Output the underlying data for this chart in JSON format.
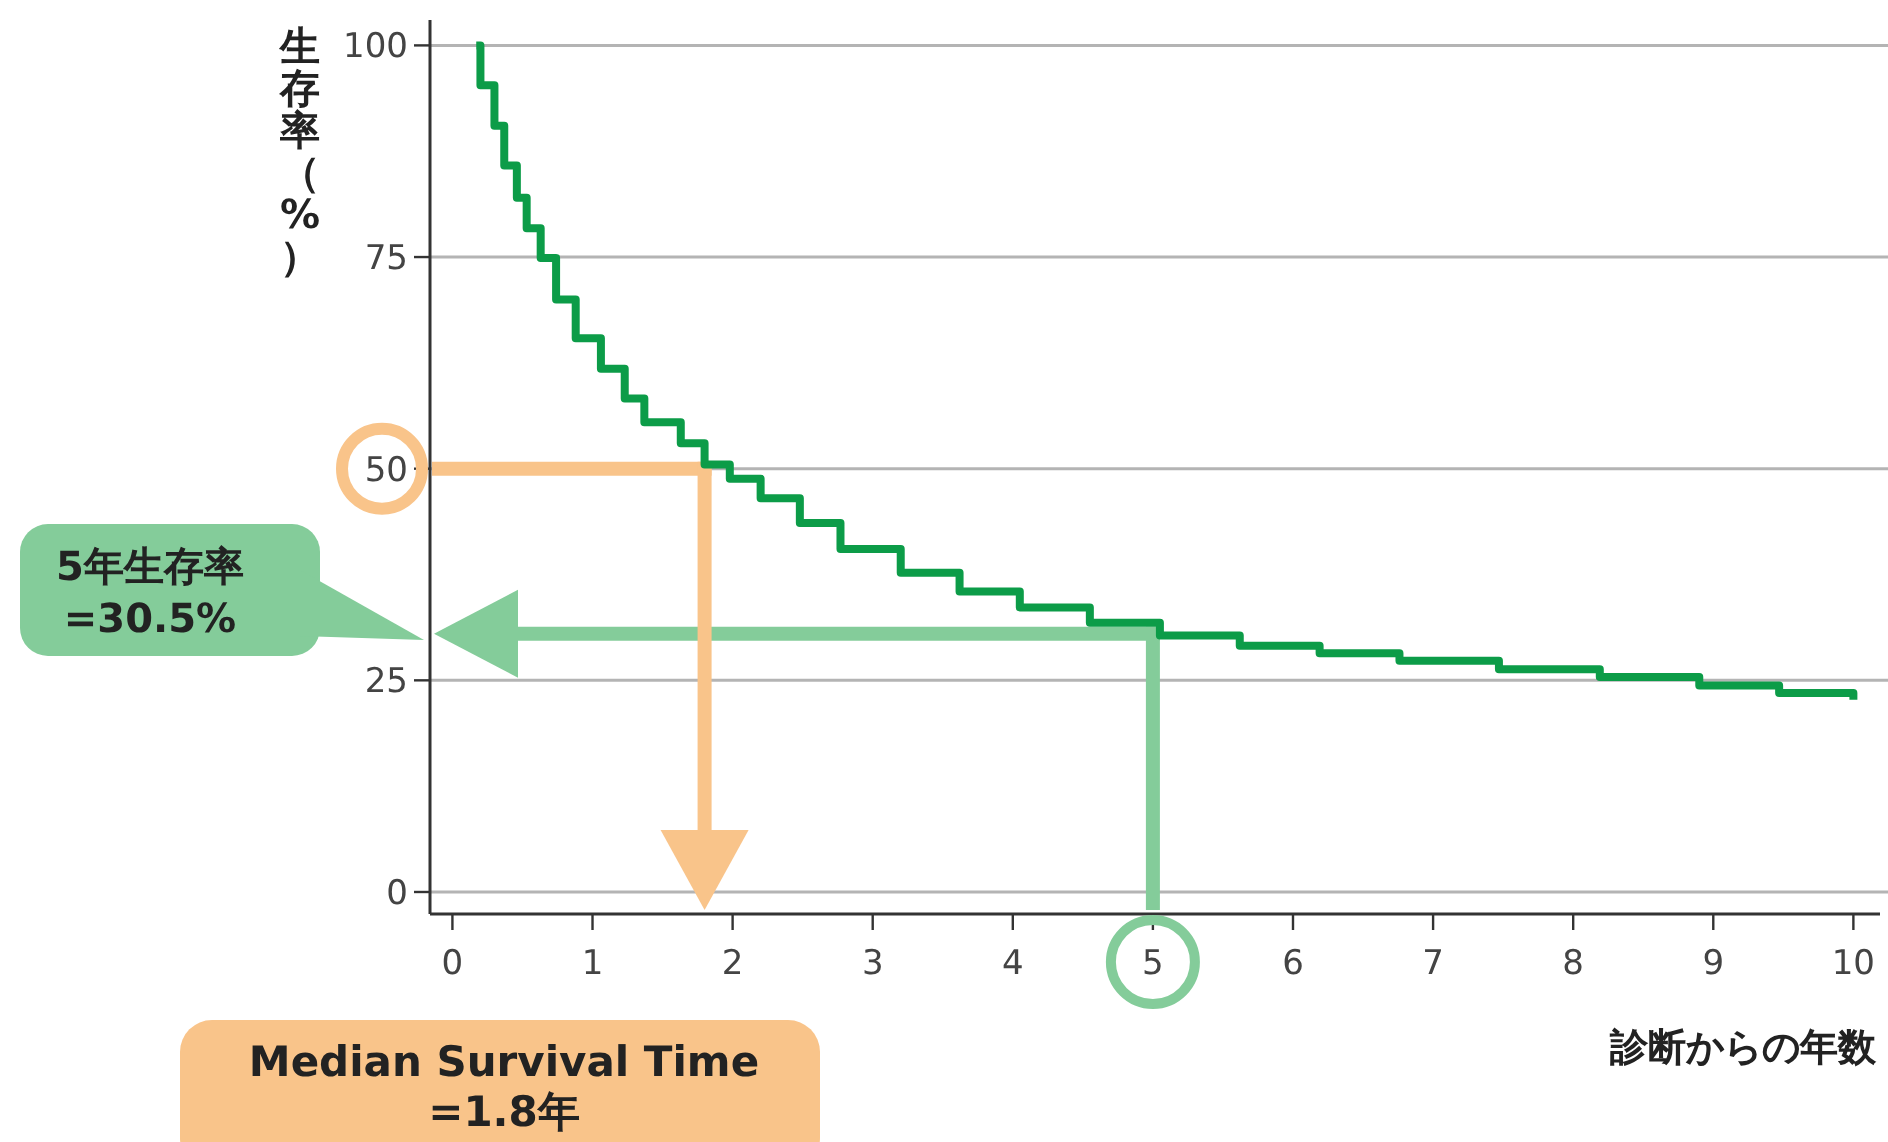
{
  "chart_data": {
    "type": "step",
    "xlabel": "診断からの年数",
    "ylabel": "生存率（%）",
    "x": [
      0.17,
      0.2,
      0.3,
      0.37,
      0.46,
      0.53,
      0.63,
      0.74,
      0.88,
      1.06,
      1.23,
      1.37,
      1.63,
      1.8,
      1.98,
      2.2,
      2.48,
      2.77,
      3.2,
      3.62,
      4.05,
      4.55,
      5.05,
      5.62,
      6.19,
      6.76,
      7.47,
      8.19,
      8.9,
      9.47,
      10
    ],
    "series": [
      {
        "color": "#0c9c48",
        "values": [
          100,
          95.3,
          90.5,
          85.8,
          82,
          78.4,
          74.9,
          70,
          65.4,
          61.8,
          58.3,
          55.5,
          53,
          50.5,
          48.8,
          46.5,
          43.6,
          40.5,
          37.7,
          35.5,
          33.6,
          31.8,
          30.3,
          29.1,
          28.2,
          27.3,
          26.3,
          25.4,
          24.4,
          23.5,
          22.7
        ]
      }
    ],
    "xlim": [
      -0.16,
      10.19
    ],
    "ylim": [
      -2.6,
      103
    ],
    "xticks": [
      0,
      1,
      2,
      3,
      4,
      5,
      6,
      7,
      8,
      9,
      10
    ],
    "yticks": [
      0,
      25,
      50,
      75,
      100
    ],
    "grid": "y",
    "ref_lines": [
      {
        "axis": "y",
        "value": 30.5,
        "color": "#84cc9a"
      },
      {
        "axis": "x",
        "value": 5,
        "color": "#84cc9a"
      },
      {
        "axis": "y",
        "value": 50,
        "color": "#f9c48a"
      },
      {
        "axis": "x",
        "value": 1.8,
        "color": "#f9c48a"
      }
    ],
    "annotations": [
      "5年生存率\n=30.5%",
      "Median Survival Time\n=1.8年"
    ]
  }
}
